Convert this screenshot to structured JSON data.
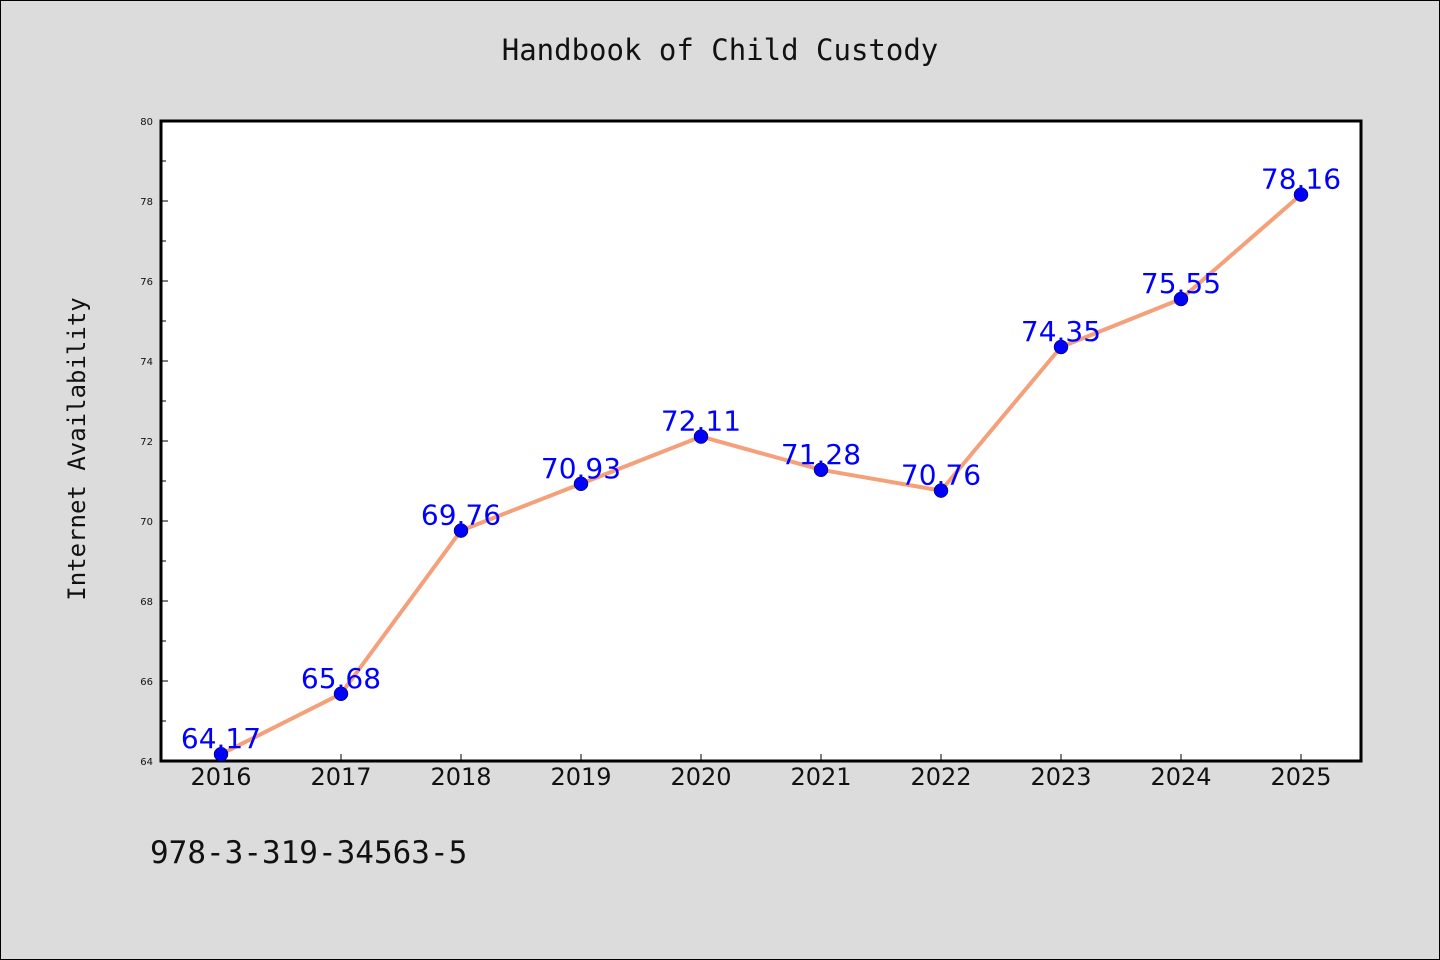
{
  "chart_data": {
    "type": "line",
    "title": "Handbook of Child Custody",
    "xlabel": "",
    "ylabel": "Internet Availability",
    "categories": [
      "2016",
      "2017",
      "2018",
      "2019",
      "2020",
      "2021",
      "2022",
      "2023",
      "2024",
      "2025"
    ],
    "series": [
      {
        "values": [
          64.17,
          65.68,
          69.76,
          70.93,
          72.11,
          71.28,
          70.76,
          74.35,
          75.55,
          78.16
        ],
        "data_labels": [
          "64.17",
          "65.68",
          "69.76",
          "70.93",
          "72.11",
          "71.28",
          "70.76",
          "74.35",
          "75.55",
          "78.16"
        ],
        "line_color": "#f4a07a",
        "marker_color": "#0000ff",
        "label_color": "#0000ff"
      }
    ],
    "ylim": [
      64,
      80
    ],
    "yticks": [
      "64",
      "66",
      "68",
      "70",
      "72",
      "74",
      "76",
      "78",
      "80"
    ],
    "grid": false,
    "legend": "none"
  },
  "footnote": "978-3-319-34563-5"
}
